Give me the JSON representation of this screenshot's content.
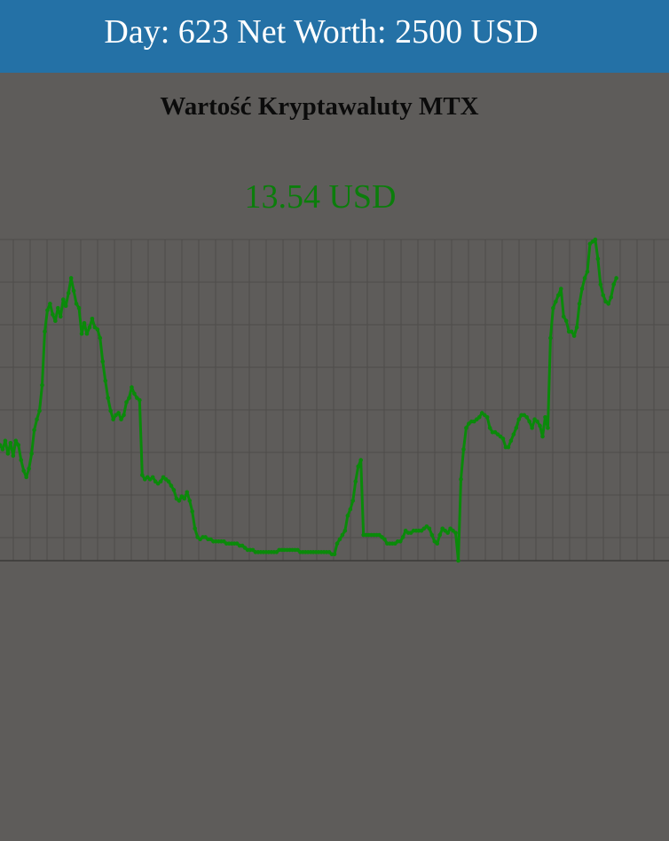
{
  "header": {
    "day_label": "Day:",
    "day": "623",
    "networth_label": "Net Worth:",
    "networth": "2500",
    "currency": "USD"
  },
  "chart": {
    "title": "Wartość Kryptawaluty MTX",
    "current_price": "13.54 USD"
  },
  "colors": {
    "header_bg": "#2471a6",
    "line": "#0a8a0a",
    "background": "#5e5c5a",
    "grid": "#4e4c4a"
  },
  "chart_data": {
    "type": "line",
    "title": "Wartość Kryptawaluty MTX",
    "grid": true,
    "x_range": [
      0,
      254
    ],
    "ylim": [
      0,
      15
    ],
    "series": [
      {
        "values": [
          5.4,
          5.2,
          5.6,
          5.0,
          5.5,
          4.9,
          5.6,
          5.4,
          4.7,
          4.2,
          3.9,
          4.3,
          5.0,
          6.1,
          6.6,
          7.0,
          8.2,
          10.7,
          11.7,
          12.0,
          11.5,
          11.2,
          11.8,
          11.4,
          12.2,
          11.9,
          12.5,
          13.2,
          12.6,
          12.0,
          11.8,
          10.6,
          11.1,
          10.6,
          10.9,
          11.3,
          10.9,
          10.8,
          10.4,
          9.3,
          8.4,
          7.6,
          7.0,
          6.6,
          6.8,
          6.9,
          6.6,
          6.8,
          7.4,
          7.6,
          8.1,
          7.8,
          7.6,
          7.5,
          4.0,
          3.8,
          3.9,
          3.8,
          3.9,
          3.7,
          3.6,
          3.7,
          3.9,
          3.8,
          3.7,
          3.5,
          3.3,
          2.9,
          2.8,
          3.0,
          2.9,
          3.2,
          2.8,
          2.3,
          1.5,
          1.1,
          1.0,
          1.1,
          1.1,
          1.0,
          1.0,
          0.9,
          0.9,
          0.9,
          0.9,
          0.9,
          0.8,
          0.8,
          0.8,
          0.8,
          0.8,
          0.7,
          0.7,
          0.6,
          0.5,
          0.5,
          0.5,
          0.4,
          0.4,
          0.4,
          0.4,
          0.4,
          0.4,
          0.4,
          0.4,
          0.4,
          0.5,
          0.5,
          0.5,
          0.5,
          0.5,
          0.5,
          0.5,
          0.5,
          0.4,
          0.4,
          0.4,
          0.4,
          0.4,
          0.4,
          0.4,
          0.4,
          0.4,
          0.4,
          0.4,
          0.4,
          0.3,
          0.3,
          0.8,
          1.0,
          1.2,
          1.4,
          2.1,
          2.4,
          2.8,
          3.7,
          4.4,
          4.7,
          1.2,
          1.2,
          1.2,
          1.2,
          1.2,
          1.2,
          1.2,
          1.1,
          1.0,
          0.8,
          0.8,
          0.8,
          0.8,
          0.9,
          0.9,
          1.1,
          1.4,
          1.3,
          1.3,
          1.4,
          1.4,
          1.4,
          1.4,
          1.5,
          1.6,
          1.5,
          1.2,
          0.9,
          0.8,
          1.2,
          1.5,
          1.4,
          1.3,
          1.5,
          1.4,
          1.3,
          0.0,
          3.8,
          5.2,
          6.2,
          6.4,
          6.5,
          6.5,
          6.6,
          6.7,
          6.9,
          6.8,
          6.7,
          6.2,
          6.0,
          6.0,
          5.9,
          5.8,
          5.7,
          5.3,
          5.3,
          5.6,
          5.9,
          6.2,
          6.6,
          6.8,
          6.8,
          6.7,
          6.5,
          6.2,
          6.6,
          6.5,
          6.3,
          5.8,
          6.7,
          6.2,
          10.4,
          11.8,
          12.1,
          12.4,
          12.7,
          11.4,
          11.2,
          10.7,
          10.7,
          10.5,
          10.9,
          12.0,
          12.7,
          13.2,
          13.5,
          14.8,
          14.9,
          15.0,
          14.1,
          12.9,
          12.4,
          12.1,
          12.0,
          12.3,
          12.9,
          13.2
        ]
      }
    ]
  }
}
